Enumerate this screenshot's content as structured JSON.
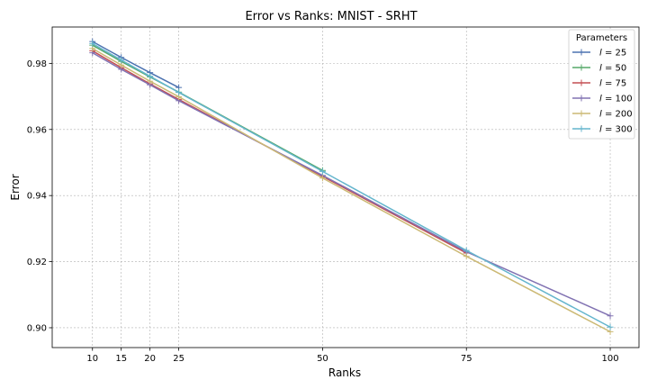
{
  "chart_data": {
    "type": "line",
    "title": "Error vs Ranks: MNIST - SRHT",
    "xlabel": "Ranks",
    "ylabel": "Error",
    "x_ticks": [
      10,
      15,
      20,
      25,
      50,
      75,
      100
    ],
    "y_ticks": [
      0.9,
      0.92,
      0.94,
      0.96,
      0.98
    ],
    "y_tick_labels": [
      "0.90",
      "0.92",
      "0.94",
      "0.96",
      "0.98"
    ],
    "xlim": [
      3,
      105
    ],
    "ylim": [
      0.894,
      0.991
    ],
    "grid": true,
    "legend": {
      "title": "Parameters",
      "placement": "top-right"
    },
    "series": [
      {
        "name": "l = 25",
        "var": "l",
        "eq": " = 25",
        "color": "#4c72b0",
        "x": [
          10,
          15,
          20,
          25
        ],
        "y": [
          0.9866,
          0.9818,
          0.9772,
          0.9727
        ]
      },
      {
        "name": "l = 50",
        "var": "l",
        "eq": " = 50",
        "color": "#55a868",
        "x": [
          10,
          15,
          20,
          25,
          50
        ],
        "y": [
          0.9855,
          0.9806,
          0.9759,
          0.9713,
          0.9476
        ]
      },
      {
        "name": "l = 75",
        "var": "l",
        "eq": " = 75",
        "color": "#c44e52",
        "x": [
          10,
          15,
          20,
          25,
          50,
          75
        ],
        "y": [
          0.9838,
          0.9787,
          0.9738,
          0.9691,
          0.9458,
          0.9226
        ]
      },
      {
        "name": "l = 100",
        "var": "l",
        "eq": " = 100",
        "color": "#8172b2",
        "x": [
          10,
          15,
          20,
          25,
          50,
          75,
          100
        ],
        "y": [
          0.9832,
          0.9782,
          0.9735,
          0.9687,
          0.9461,
          0.923,
          0.9036
        ]
      },
      {
        "name": "l = 200",
        "var": "l",
        "eq": " = 200",
        "color": "#ccb974",
        "x": [
          10,
          15,
          20,
          25,
          50,
          75,
          100
        ],
        "y": [
          0.9845,
          0.9795,
          0.9746,
          0.9699,
          0.9453,
          0.9216,
          0.8988
        ]
      },
      {
        "name": "l = 300",
        "var": "l",
        "eq": " = 300",
        "color": "#64b5cd",
        "x": [
          10,
          15,
          20,
          25,
          50,
          75,
          100
        ],
        "y": [
          0.986,
          0.981,
          0.9761,
          0.9712,
          0.9473,
          0.9234,
          0.9002
        ]
      }
    ]
  }
}
